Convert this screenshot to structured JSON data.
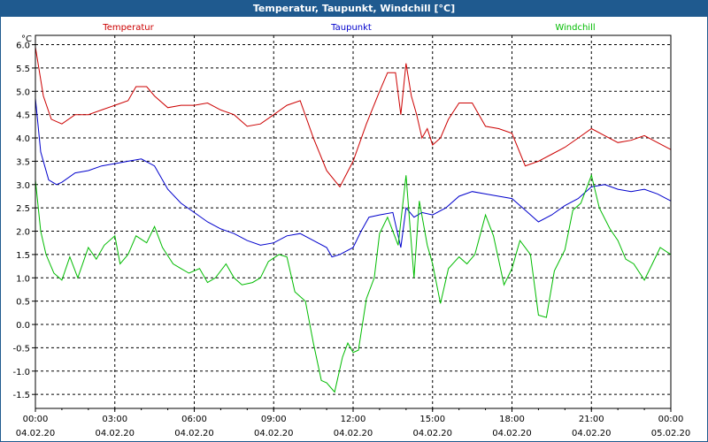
{
  "window": {
    "title": "Temperatur, Taupunkt, Windchill [°C]"
  },
  "chart_data": {
    "type": "line",
    "title": "Temperatur, Taupunkt, Windchill [°C]",
    "ylabel": "°C",
    "xlabel": "",
    "ylim": [
      -1.8,
      6.2
    ],
    "yticks": [
      -1.5,
      -1.0,
      -0.5,
      0.0,
      0.5,
      1.0,
      1.5,
      2.0,
      2.5,
      3.0,
      3.5,
      4.0,
      4.5,
      5.0,
      5.5,
      6.0
    ],
    "ytick_labels": [
      "-1.5",
      "-1.0",
      "-0.5",
      "0.0",
      "0.5",
      "1.0",
      "1.5",
      "2.0",
      "2.5",
      "3.0",
      "3.5",
      "4.0",
      "4.5",
      "5.0",
      "5.5",
      "6.0"
    ],
    "xlim": [
      0,
      24
    ],
    "xticks": [
      0,
      3,
      6,
      9,
      12,
      15,
      18,
      21,
      24
    ],
    "xtick_time": [
      "00:00",
      "03:00",
      "06:00",
      "09:00",
      "12:00",
      "15:00",
      "18:00",
      "21:00",
      "00:00"
    ],
    "xtick_date": [
      "04.02.20",
      "04.02.20",
      "04.02.20",
      "04.02.20",
      "04.02.20",
      "04.02.20",
      "04.02.20",
      "04.02.20",
      "05.02.20"
    ],
    "grid": true,
    "series": [
      {
        "name": "Temperatur",
        "color": "#cc0000",
        "x": [
          0,
          0.3,
          0.6,
          1.0,
          1.5,
          2.0,
          2.5,
          3.0,
          3.5,
          3.8,
          4.2,
          4.5,
          5.0,
          5.5,
          6.0,
          6.5,
          7.0,
          7.5,
          8.0,
          8.5,
          9.0,
          9.5,
          10.0,
          10.5,
          11.0,
          11.5,
          12.0,
          12.5,
          13.0,
          13.3,
          13.6,
          13.8,
          14.0,
          14.2,
          14.4,
          14.6,
          14.8,
          15.0,
          15.3,
          15.6,
          16.0,
          16.5,
          17.0,
          17.5,
          18.0,
          18.5,
          19.0,
          19.5,
          20.0,
          20.5,
          21.0,
          21.5,
          22.0,
          22.5,
          23.0,
          23.5,
          24.0
        ],
        "values": [
          5.95,
          4.9,
          4.4,
          4.3,
          4.5,
          4.5,
          4.6,
          4.7,
          4.8,
          5.1,
          5.1,
          4.9,
          4.65,
          4.7,
          4.7,
          4.75,
          4.6,
          4.5,
          4.25,
          4.3,
          4.5,
          4.7,
          4.8,
          4.0,
          3.3,
          2.95,
          3.5,
          4.3,
          5.0,
          5.4,
          5.4,
          4.5,
          5.6,
          4.9,
          4.5,
          4.0,
          4.2,
          3.85,
          4.0,
          4.4,
          4.75,
          4.75,
          4.25,
          4.2,
          4.1,
          3.4,
          3.5,
          3.65,
          3.8,
          4.0,
          4.2,
          4.05,
          3.9,
          3.95,
          4.05,
          3.9,
          3.75
        ]
      },
      {
        "name": "Taupunkt",
        "color": "#0000cc",
        "x": [
          0,
          0.2,
          0.5,
          0.8,
          1.0,
          1.5,
          2.0,
          2.5,
          3.0,
          3.5,
          4.0,
          4.5,
          5.0,
          5.5,
          6.0,
          6.5,
          7.0,
          7.5,
          8.0,
          8.5,
          9.0,
          9.5,
          10.0,
          10.5,
          11.0,
          11.2,
          11.5,
          12.0,
          12.3,
          12.6,
          13.0,
          13.5,
          13.8,
          14.0,
          14.3,
          14.6,
          15.0,
          15.5,
          16.0,
          16.5,
          17.0,
          17.5,
          18.0,
          18.5,
          19.0,
          19.5,
          20.0,
          20.5,
          21.0,
          21.5,
          22.0,
          22.5,
          23.0,
          23.5,
          24.0
        ],
        "values": [
          4.85,
          3.7,
          3.1,
          3.0,
          3.05,
          3.25,
          3.3,
          3.4,
          3.45,
          3.5,
          3.55,
          3.4,
          2.9,
          2.6,
          2.4,
          2.2,
          2.05,
          1.95,
          1.8,
          1.7,
          1.75,
          1.9,
          1.95,
          1.8,
          1.65,
          1.45,
          1.5,
          1.65,
          2.0,
          2.3,
          2.35,
          2.4,
          1.65,
          2.5,
          2.3,
          2.4,
          2.35,
          2.5,
          2.75,
          2.85,
          2.8,
          2.75,
          2.7,
          2.45,
          2.2,
          2.35,
          2.55,
          2.7,
          2.95,
          3.0,
          2.9,
          2.85,
          2.9,
          2.8,
          2.65
        ]
      },
      {
        "name": "Windchill",
        "color": "#00bb00",
        "x": [
          0,
          0.2,
          0.4,
          0.7,
          1.0,
          1.3,
          1.6,
          2.0,
          2.3,
          2.6,
          3.0,
          3.2,
          3.5,
          3.8,
          4.2,
          4.5,
          4.8,
          5.2,
          5.5,
          5.8,
          6.2,
          6.5,
          6.8,
          7.2,
          7.5,
          7.8,
          8.2,
          8.5,
          8.8,
          9.2,
          9.5,
          9.8,
          10.2,
          10.5,
          10.8,
          11.0,
          11.3,
          11.6,
          11.8,
          12.0,
          12.2,
          12.5,
          12.8,
          13.0,
          13.3,
          13.7,
          14.0,
          14.3,
          14.5,
          14.8,
          15.0,
          15.3,
          15.6,
          16.0,
          16.3,
          16.6,
          17.0,
          17.3,
          17.7,
          18.0,
          18.3,
          18.7,
          19.0,
          19.3,
          19.6,
          20.0,
          20.3,
          20.6,
          21.0,
          21.3,
          21.7,
          22.0,
          22.3,
          22.6,
          23.0,
          23.3,
          23.6,
          24.0
        ],
        "values": [
          3.1,
          2.0,
          1.5,
          1.1,
          0.95,
          1.45,
          1.0,
          1.65,
          1.4,
          1.7,
          1.9,
          1.3,
          1.5,
          1.9,
          1.75,
          2.1,
          1.65,
          1.3,
          1.2,
          1.1,
          1.2,
          0.9,
          1.0,
          1.3,
          1.0,
          0.85,
          0.9,
          1.0,
          1.35,
          1.5,
          1.45,
          0.7,
          0.5,
          -0.4,
          -1.2,
          -1.25,
          -1.45,
          -0.7,
          -0.4,
          -0.6,
          -0.55,
          0.55,
          1.0,
          1.95,
          2.3,
          1.7,
          3.2,
          1.0,
          2.65,
          1.7,
          1.3,
          0.45,
          1.2,
          1.45,
          1.3,
          1.5,
          2.35,
          1.9,
          0.85,
          1.2,
          1.8,
          1.5,
          0.2,
          0.15,
          1.15,
          1.6,
          2.45,
          2.6,
          3.2,
          2.5,
          2.05,
          1.8,
          1.4,
          1.3,
          0.95,
          1.3,
          1.65,
          1.5
        ]
      }
    ]
  }
}
